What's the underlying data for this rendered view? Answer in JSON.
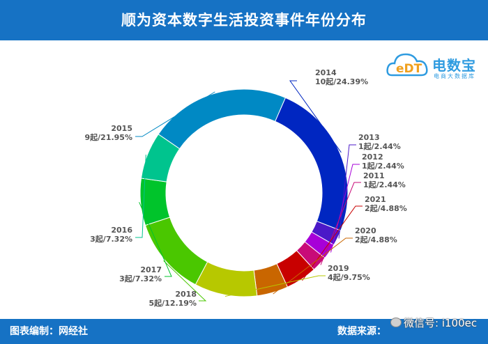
{
  "header": {
    "title": "顺为资本数字生活投资事件年份分布"
  },
  "footer": {
    "left": "图表编制：网经社",
    "right": "数据来源：",
    "watermark": "微信号: i100ec"
  },
  "logo": {
    "mark": "eDT",
    "name": "电数宝",
    "sub": "电商大数据库"
  },
  "colors": {
    "header_bg": "#1672c4",
    "2014": "#0026c1",
    "2013": "#4b19c8",
    "2012": "#a700d8",
    "2011": "#c80b78",
    "2021": "#c80000",
    "2020": "#c96600",
    "2019": "#b7c800",
    "2018": "#4ac700",
    "2017": "#00c42b",
    "2016": "#00c48e",
    "2015": "#0089c4"
  },
  "chart_data": {
    "type": "pie",
    "donut": true,
    "title": "顺为资本数字生活投资事件年份分布",
    "unit": "起",
    "slices": [
      {
        "label": "2014",
        "value": 10,
        "percent": 24.39,
        "detail": "10起/24.39%"
      },
      {
        "label": "2013",
        "value": 1,
        "percent": 2.44,
        "detail": "1起/2.44%"
      },
      {
        "label": "2012",
        "value": 1,
        "percent": 2.44,
        "detail": "1起/2.44%"
      },
      {
        "label": "2011",
        "value": 1,
        "percent": 2.44,
        "detail": "1起/2.44%"
      },
      {
        "label": "2021",
        "value": 2,
        "percent": 4.88,
        "detail": "2起/4.88%"
      },
      {
        "label": "2020",
        "value": 2,
        "percent": 4.88,
        "detail": "2起/4.88%"
      },
      {
        "label": "2019",
        "value": 4,
        "percent": 9.75,
        "detail": "4起/9.75%"
      },
      {
        "label": "2018",
        "value": 5,
        "percent": 12.19,
        "detail": "5起/12.19%"
      },
      {
        "label": "2017",
        "value": 3,
        "percent": 7.32,
        "detail": "3起/7.32%"
      },
      {
        "label": "2016",
        "value": 3,
        "percent": 7.32,
        "detail": "3起/7.32%"
      },
      {
        "label": "2015",
        "value": 9,
        "percent": 21.95,
        "detail": "9起/21.95%"
      }
    ]
  }
}
